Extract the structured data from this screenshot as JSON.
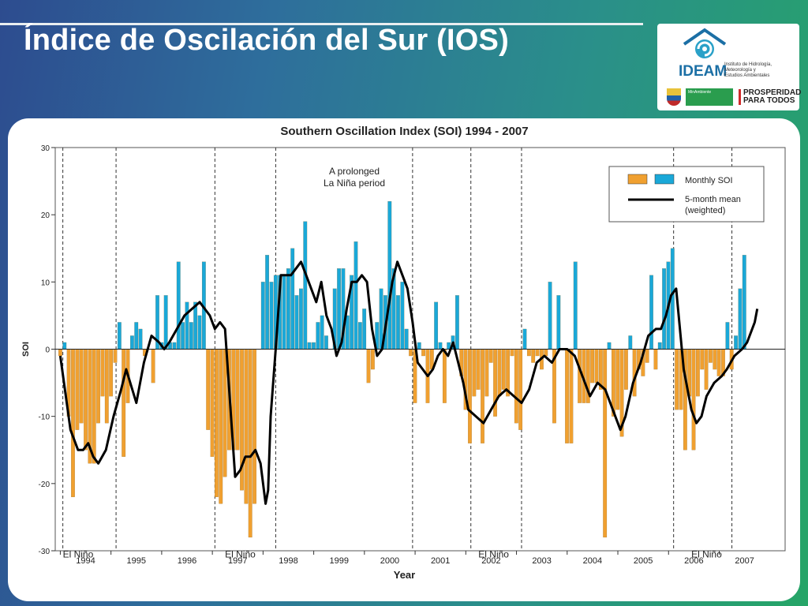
{
  "slide": {
    "title": "Índice de Oscilación del Sur (IOS)"
  },
  "logo": {
    "brand": "IDEAM",
    "subtitle_lines": [
      "Instituto de Hidrología,",
      "Meteorología y",
      "Estudios Ambientales"
    ],
    "ministry": "MinAmbiente",
    "slogan_lines": [
      "PROSPERIDAD",
      "PARA TODOS"
    ]
  },
  "colors": {
    "negative": "#f0a030",
    "positive": "#1aa8d8",
    "mean_line": "#000000"
  },
  "chart_data": {
    "type": "bar",
    "title": "Southern Oscillation Index (SOI) 1994 - 2007",
    "xlabel": "Year",
    "ylabel": "SOI",
    "ylim": [
      -30,
      30
    ],
    "yticks": [
      30,
      20,
      10,
      0,
      -10,
      -20,
      -30
    ],
    "xlim": [
      1993.9,
      2008.3
    ],
    "year_labels": [
      "1994",
      "1995",
      "1996",
      "1997",
      "1998",
      "1999",
      "2000",
      "2001",
      "2002",
      "2003",
      "2004",
      "2005",
      "2006",
      "2007"
    ],
    "grid": false,
    "legend": {
      "position": "top-right",
      "entries": [
        {
          "label": "Monthly SOI",
          "style": "bars"
        },
        {
          "label": "5-month mean\n(weighted)",
          "style": "line"
        }
      ]
    },
    "series": [
      {
        "name": "Monthly SOI",
        "style": "bars",
        "x_start": 1994.0,
        "x_step": 0.0833,
        "values": [
          -1,
          1,
          -10,
          -22,
          -12,
          -11,
          -15,
          -17,
          -17,
          -11,
          -7,
          -11,
          -7,
          -2,
          4,
          -16,
          -8,
          2,
          4,
          3,
          -1,
          0,
          -5,
          8,
          1,
          8,
          1,
          1,
          13,
          4,
          7,
          4,
          7,
          5,
          13,
          -12,
          -16,
          -22,
          -23,
          -19,
          -15,
          -15,
          -15,
          -21,
          -23,
          -28,
          -23,
          0,
          10,
          14,
          10,
          11,
          11,
          11,
          12,
          15,
          8,
          9,
          19,
          1,
          1,
          4,
          5,
          2,
          0,
          9,
          12,
          12,
          5,
          11,
          16,
          4,
          6,
          -5,
          -3,
          4,
          9,
          8,
          22,
          12,
          8,
          10,
          3,
          -1,
          -8,
          1,
          -1,
          -8,
          -3,
          7,
          1,
          -8,
          1,
          2,
          8,
          -4,
          -9,
          -14,
          -7,
          -6,
          -14,
          -7,
          -2,
          -10,
          -7,
          -6,
          -7,
          -1,
          -11,
          -12,
          3,
          -1,
          -2,
          -1,
          -3,
          -1,
          10,
          -11,
          8,
          0,
          -14,
          -14,
          13,
          -8,
          -8,
          -8,
          -5,
          -5,
          -6,
          -28,
          1,
          -10,
          -9,
          -13,
          -6,
          2,
          -7,
          -3,
          -4,
          -2,
          11,
          -3,
          1,
          12,
          13,
          15,
          -9,
          -9,
          -15,
          -7,
          -15,
          -7,
          -3,
          -6,
          -2,
          -3,
          -4,
          -4,
          4,
          -3,
          2,
          9,
          14
        ]
      },
      {
        "name": "5-month mean (weighted)",
        "style": "line",
        "points": [
          [
            1994.0,
            -1
          ],
          [
            1994.2,
            -12
          ],
          [
            1994.35,
            -15
          ],
          [
            1994.45,
            -15
          ],
          [
            1994.55,
            -14
          ],
          [
            1994.65,
            -16
          ],
          [
            1994.75,
            -17
          ],
          [
            1994.9,
            -15
          ],
          [
            1995.05,
            -10
          ],
          [
            1995.2,
            -6
          ],
          [
            1995.3,
            -3
          ],
          [
            1995.5,
            -8
          ],
          [
            1995.65,
            -2
          ],
          [
            1995.8,
            2
          ],
          [
            1995.95,
            1
          ],
          [
            1996.05,
            0
          ],
          [
            1996.15,
            1
          ],
          [
            1996.3,
            3
          ],
          [
            1996.45,
            5
          ],
          [
            1996.6,
            6
          ],
          [
            1996.75,
            7
          ],
          [
            1996.85,
            6
          ],
          [
            1996.95,
            5
          ],
          [
            1997.05,
            3
          ],
          [
            1997.15,
            4
          ],
          [
            1997.25,
            3
          ],
          [
            1997.35,
            -8
          ],
          [
            1997.45,
            -19
          ],
          [
            1997.55,
            -18
          ],
          [
            1997.65,
            -16
          ],
          [
            1997.75,
            -16
          ],
          [
            1997.85,
            -15
          ],
          [
            1997.95,
            -17
          ],
          [
            1998.05,
            -23
          ],
          [
            1998.1,
            -21
          ],
          [
            1998.15,
            -10
          ],
          [
            1998.25,
            0
          ],
          [
            1998.35,
            11
          ],
          [
            1998.45,
            11
          ],
          [
            1998.55,
            11
          ],
          [
            1998.65,
            12
          ],
          [
            1998.75,
            13
          ],
          [
            1998.85,
            11
          ],
          [
            1998.95,
            9
          ],
          [
            1999.05,
            7
          ],
          [
            1999.15,
            10
          ],
          [
            1999.25,
            5
          ],
          [
            1999.35,
            3
          ],
          [
            1999.45,
            -1
          ],
          [
            1999.55,
            1
          ],
          [
            1999.65,
            6
          ],
          [
            1999.75,
            10
          ],
          [
            1999.85,
            10
          ],
          [
            1999.95,
            11
          ],
          [
            2000.05,
            10
          ],
          [
            2000.15,
            3
          ],
          [
            2000.25,
            -1
          ],
          [
            2000.35,
            0
          ],
          [
            2000.45,
            5
          ],
          [
            2000.55,
            10
          ],
          [
            2000.65,
            13
          ],
          [
            2000.75,
            11
          ],
          [
            2000.85,
            9
          ],
          [
            2000.95,
            4
          ],
          [
            2001.05,
            -2
          ],
          [
            2001.15,
            -3
          ],
          [
            2001.25,
            -4
          ],
          [
            2001.35,
            -3
          ],
          [
            2001.45,
            -1
          ],
          [
            2001.55,
            0
          ],
          [
            2001.65,
            -1
          ],
          [
            2001.75,
            1
          ],
          [
            2001.85,
            -2
          ],
          [
            2001.95,
            -5
          ],
          [
            2002.05,
            -9
          ],
          [
            2002.2,
            -10
          ],
          [
            2002.35,
            -11
          ],
          [
            2002.5,
            -9
          ],
          [
            2002.65,
            -7
          ],
          [
            2002.8,
            -6
          ],
          [
            2002.95,
            -7
          ],
          [
            2003.1,
            -8
          ],
          [
            2003.25,
            -6
          ],
          [
            2003.4,
            -2
          ],
          [
            2003.55,
            -1
          ],
          [
            2003.7,
            -2
          ],
          [
            2003.85,
            0
          ],
          [
            2004.0,
            0
          ],
          [
            2004.15,
            -1
          ],
          [
            2004.3,
            -4
          ],
          [
            2004.45,
            -7
          ],
          [
            2004.6,
            -5
          ],
          [
            2004.75,
            -6
          ],
          [
            2004.85,
            -8
          ],
          [
            2004.95,
            -10
          ],
          [
            2005.05,
            -12
          ],
          [
            2005.15,
            -10
          ],
          [
            2005.3,
            -5
          ],
          [
            2005.45,
            -2
          ],
          [
            2005.6,
            2
          ],
          [
            2005.75,
            3
          ],
          [
            2005.85,
            3
          ],
          [
            2005.95,
            5
          ],
          [
            2006.05,
            8
          ],
          [
            2006.15,
            9
          ],
          [
            2006.2,
            5
          ],
          [
            2006.3,
            -3
          ],
          [
            2006.45,
            -9
          ],
          [
            2006.55,
            -11
          ],
          [
            2006.65,
            -10
          ],
          [
            2006.75,
            -7
          ],
          [
            2006.9,
            -5
          ],
          [
            2007.05,
            -4
          ],
          [
            2007.15,
            -3
          ],
          [
            2007.3,
            -1
          ],
          [
            2007.45,
            0
          ],
          [
            2007.55,
            1
          ],
          [
            2007.7,
            4
          ],
          [
            2007.75,
            6
          ]
        ]
      }
    ],
    "annotations": [
      {
        "text": "El Niño",
        "x": 1994.35,
        "y": -31
      },
      {
        "text": "El Niño",
        "x": 1997.55,
        "y": -31
      },
      {
        "text": "A prolonged\nLa Niña period",
        "x": 1999.8,
        "y": 26
      },
      {
        "text": "El Niño",
        "x": 2002.55,
        "y": -31
      },
      {
        "text": "El Niño",
        "x": 2006.75,
        "y": -31
      }
    ],
    "period_markers": [
      1994.05,
      1995.1,
      1997.05,
      1998.25,
      2000.95,
      2002.1,
      2003.1,
      2006.1,
      2007.25
    ]
  }
}
